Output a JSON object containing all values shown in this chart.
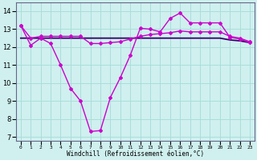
{
  "xlabel": "Windchill (Refroidissement éolien,°C)",
  "x_ticks": [
    0,
    1,
    2,
    3,
    4,
    5,
    6,
    7,
    8,
    9,
    10,
    11,
    12,
    13,
    14,
    15,
    16,
    17,
    18,
    19,
    20,
    21,
    22,
    23
  ],
  "ylim": [
    6.8,
    14.5
  ],
  "yticks": [
    7,
    8,
    9,
    10,
    11,
    12,
    13,
    14
  ],
  "background_color": "#cff0ef",
  "grid_color": "#aaddda",
  "line_color": "#cc00cc",
  "flat_line_color": "#330066",
  "line1_points": [
    [
      0,
      13.2
    ],
    [
      1,
      12.1
    ],
    [
      2,
      12.5
    ],
    [
      3,
      12.2
    ],
    [
      4,
      11.0
    ],
    [
      5,
      9.7
    ],
    [
      6,
      9.0
    ],
    [
      7,
      7.3
    ],
    [
      8,
      7.35
    ],
    [
      9,
      9.2
    ],
    [
      10,
      10.3
    ],
    [
      11,
      11.55
    ],
    [
      12,
      13.05
    ],
    [
      13,
      13.0
    ],
    [
      14,
      12.85
    ],
    [
      15,
      13.6
    ],
    [
      16,
      13.9
    ],
    [
      17,
      13.35
    ],
    [
      18,
      13.35
    ],
    [
      19,
      13.35
    ],
    [
      20,
      13.35
    ],
    [
      21,
      12.55
    ],
    [
      22,
      12.45
    ],
    [
      23,
      12.25
    ]
  ],
  "line2_points": [
    [
      0,
      13.2
    ],
    [
      1,
      12.5
    ],
    [
      2,
      12.6
    ],
    [
      3,
      12.6
    ],
    [
      4,
      12.6
    ],
    [
      5,
      12.6
    ],
    [
      6,
      12.6
    ],
    [
      7,
      12.2
    ],
    [
      8,
      12.2
    ],
    [
      9,
      12.25
    ],
    [
      10,
      12.3
    ],
    [
      11,
      12.45
    ],
    [
      12,
      12.6
    ],
    [
      13,
      12.7
    ],
    [
      14,
      12.75
    ],
    [
      15,
      12.8
    ],
    [
      16,
      12.9
    ],
    [
      17,
      12.85
    ],
    [
      18,
      12.85
    ],
    [
      19,
      12.85
    ],
    [
      20,
      12.85
    ],
    [
      21,
      12.6
    ],
    [
      22,
      12.5
    ],
    [
      23,
      12.3
    ]
  ],
  "flat_line_points": [
    [
      0,
      12.5
    ],
    [
      1,
      12.5
    ],
    [
      2,
      12.5
    ],
    [
      3,
      12.5
    ],
    [
      4,
      12.5
    ],
    [
      5,
      12.5
    ],
    [
      6,
      12.5
    ],
    [
      7,
      12.5
    ],
    [
      8,
      12.5
    ],
    [
      9,
      12.5
    ],
    [
      10,
      12.5
    ],
    [
      11,
      12.5
    ],
    [
      12,
      12.5
    ],
    [
      13,
      12.5
    ],
    [
      14,
      12.5
    ],
    [
      15,
      12.5
    ],
    [
      16,
      12.5
    ],
    [
      17,
      12.5
    ],
    [
      18,
      12.5
    ],
    [
      19,
      12.5
    ],
    [
      20,
      12.5
    ],
    [
      21,
      12.4
    ],
    [
      22,
      12.35
    ],
    [
      23,
      12.25
    ]
  ]
}
